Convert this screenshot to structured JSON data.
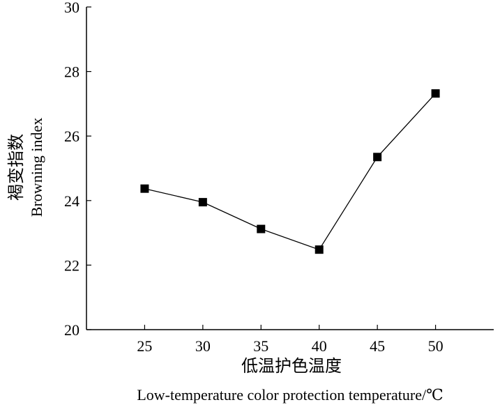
{
  "chart_data": {
    "type": "line",
    "title": "",
    "x": [
      25,
      30,
      35,
      40,
      45,
      50
    ],
    "series": [
      {
        "values": [
          24.37,
          23.95,
          23.12,
          22.48,
          25.35,
          27.32
        ]
      }
    ],
    "xlabel_zh": "低温护色温度",
    "xlabel_en": "Low-temperature color protection temperature/℃",
    "ylabel_zh": "褐变指数",
    "ylabel_en": "Browning index",
    "xticks": [
      "25",
      "30",
      "35",
      "40",
      "45",
      "50"
    ],
    "yticks": [
      "20",
      "22",
      "24",
      "26",
      "28",
      "30"
    ],
    "xlim": [
      20,
      55
    ],
    "ylim": [
      20,
      30
    ],
    "grid": false,
    "marker": "square",
    "line_color": "#000000"
  }
}
